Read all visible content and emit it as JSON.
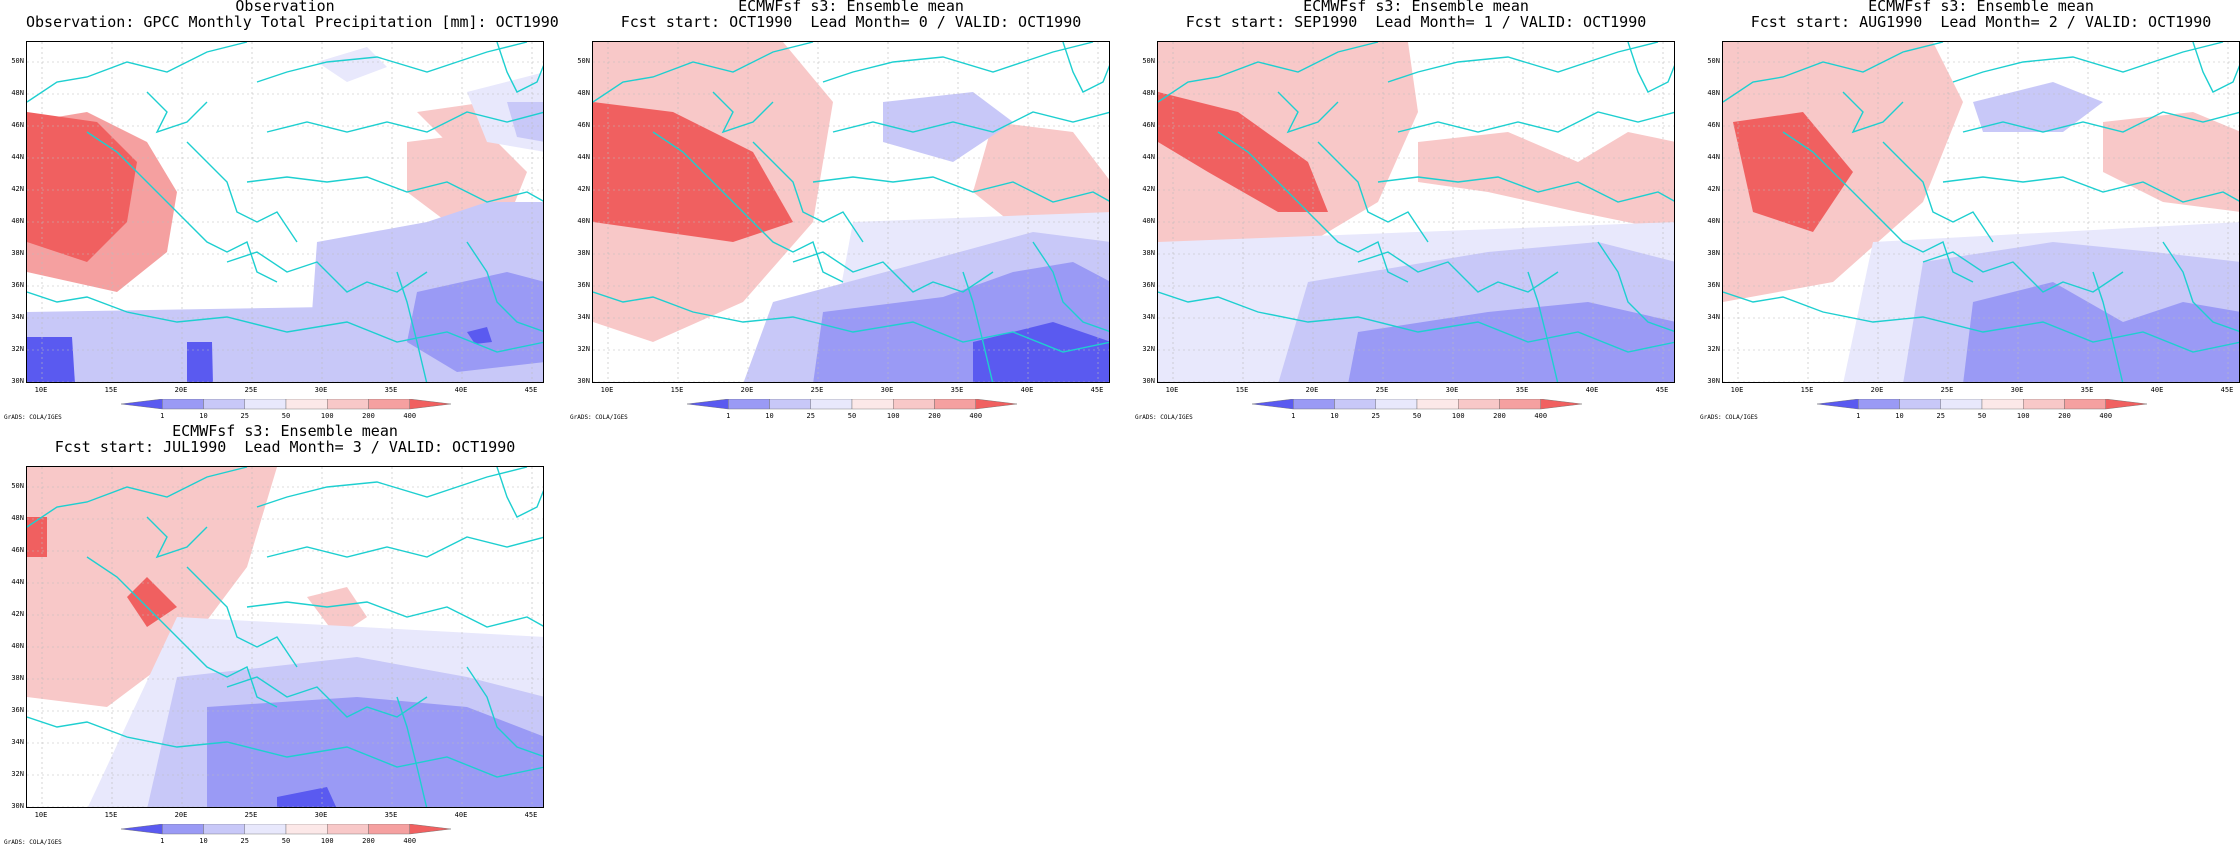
{
  "panels": [
    {
      "title1": "Observation",
      "title2": "Observation: GPCC Monthly Total Precipitation [mm]: OCT1990"
    },
    {
      "title1": "ECMWFsf s3: Ensemble mean",
      "title2": "Fcst start: OCT1990  Lead Month= 0 / VALID: OCT1990"
    },
    {
      "title1": "ECMWFsf s3: Ensemble mean",
      "title2": "Fcst start: SEP1990  Lead Month= 1 / VALID: OCT1990"
    },
    {
      "title1": "ECMWFsf s3: Ensemble mean",
      "title2": "Fcst start: AUG1990  Lead Month= 2 / VALID: OCT1990"
    },
    {
      "title1": "ECMWFsf s3: Ensemble mean",
      "title2": "Fcst start: JUL1990  Lead Month= 3 / VALID: OCT1990"
    }
  ],
  "lat_labels": [
    "50N",
    "48N",
    "46N",
    "44N",
    "42N",
    "40N",
    "38N",
    "36N",
    "34N",
    "32N",
    "30N"
  ],
  "lon_labels": [
    "10E",
    "15E",
    "20E",
    "25E",
    "30E",
    "35E",
    "40E",
    "45E"
  ],
  "colorbar": {
    "levels": [
      "1",
      "10",
      "25",
      "50",
      "100",
      "200",
      "400"
    ],
    "colors": [
      "#5a5af0",
      "#9a9af5",
      "#c8c8f8",
      "#e8e8fc",
      "#fce8e8",
      "#f8c8c8",
      "#f5a0a0",
      "#f06060"
    ]
  },
  "credit": "GrADS: COLA/IGES",
  "colors": {
    "coast": "#1ecfd0",
    "grid": "#bbbbbb"
  }
}
